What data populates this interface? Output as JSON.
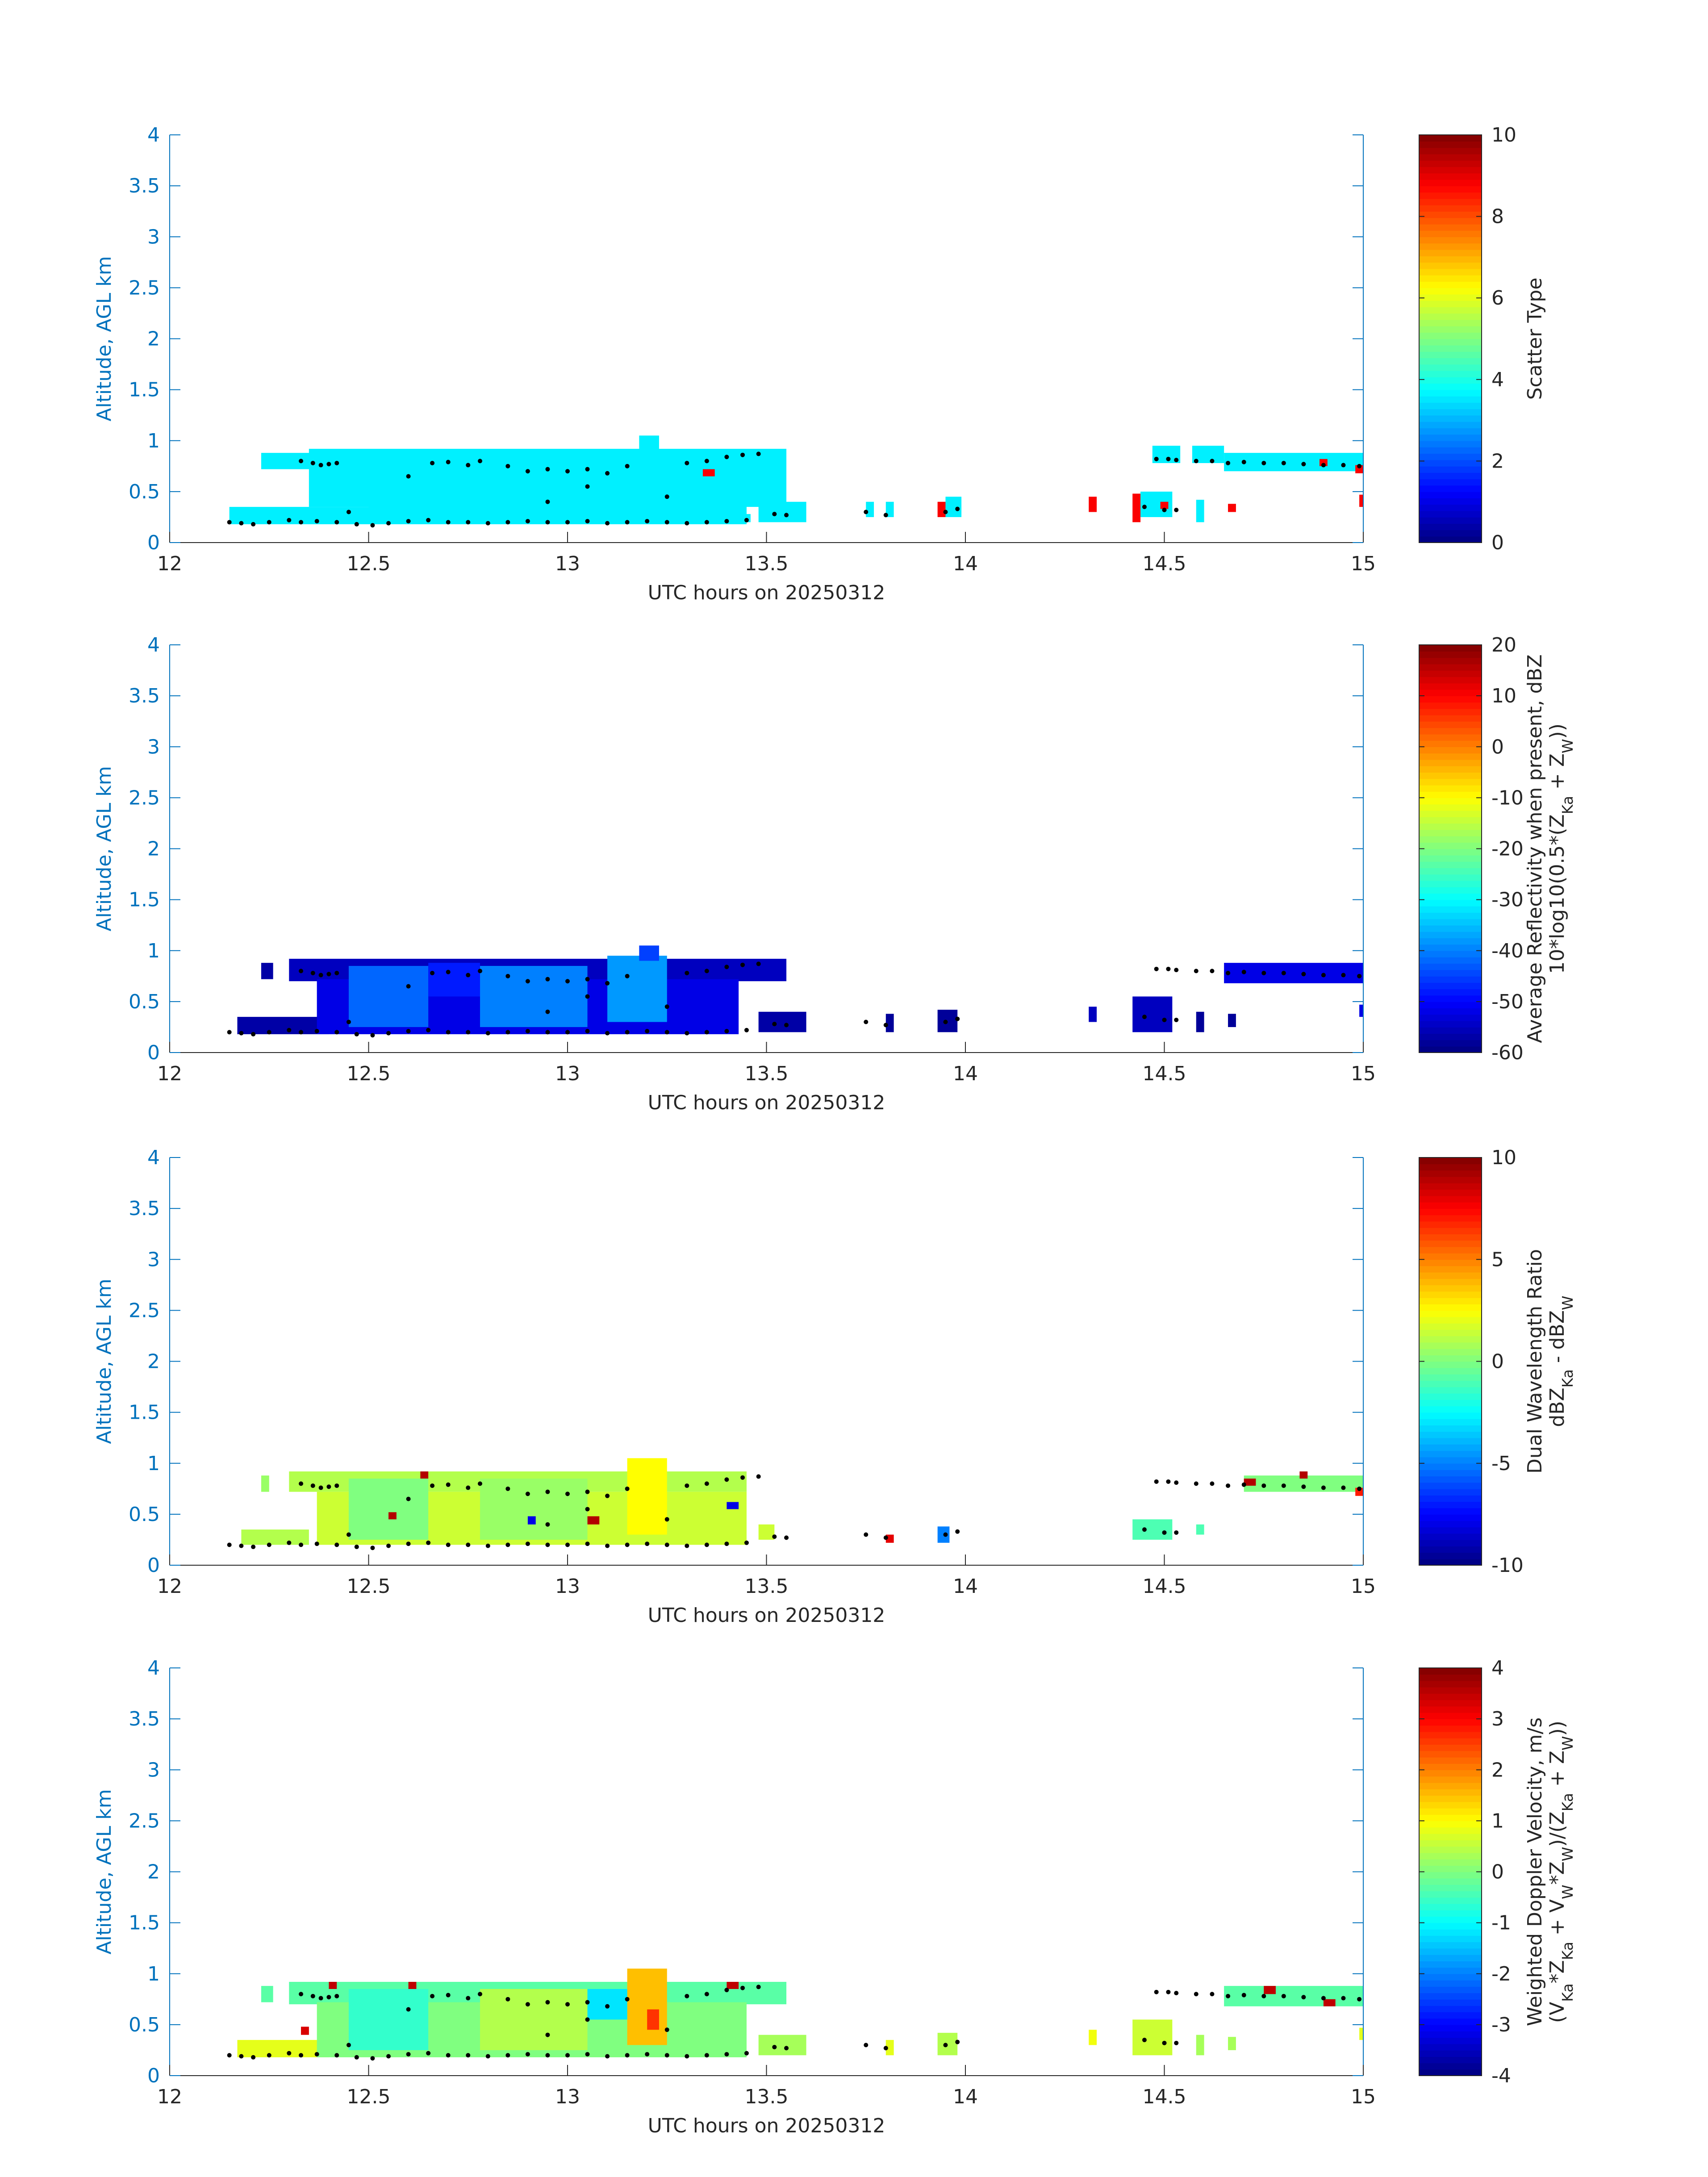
{
  "figure": {
    "axis_color": "#0072bd",
    "text_color": "#262626",
    "layer_color": "#000000"
  },
  "chart_data": [
    {
      "type": "heatmap",
      "title": "",
      "xlabel": "UTC hours on 20250312",
      "ylabel": "Altitude, AGL km",
      "xlim": [
        12,
        15
      ],
      "ylim": [
        0,
        4
      ],
      "xticks": [
        "12",
        "12.5",
        "13",
        "13.5",
        "14",
        "14.5",
        "15"
      ],
      "yticks": [
        "0",
        "0.5",
        "1",
        "1.5",
        "2",
        "2.5",
        "3",
        "3.5",
        "4"
      ],
      "colorbar": {
        "label_lines": [
          "Scatter Type"
        ],
        "range": [
          0,
          10
        ],
        "ticks": [
          "0",
          "2",
          "4",
          "6",
          "8",
          "10"
        ],
        "colormap": "jet"
      },
      "cells": [
        {
          "x0": 12.15,
          "x1": 12.53,
          "y0": 0.18,
          "y1": 0.35,
          "value": 3.6
        },
        {
          "x0": 12.23,
          "x1": 12.42,
          "y0": 0.72,
          "y1": 0.88,
          "value": 3.6
        },
        {
          "x0": 12.35,
          "x1": 13.55,
          "y0": 0.35,
          "y1": 0.92,
          "value": 3.6
        },
        {
          "x0": 12.5,
          "x1": 13.45,
          "y0": 0.18,
          "y1": 0.4,
          "value": 3.6
        },
        {
          "x0": 13.18,
          "x1": 13.23,
          "y0": 0.9,
          "y1": 1.05,
          "value": 3.6
        },
        {
          "x0": 13.38,
          "x1": 13.46,
          "y0": 0.2,
          "y1": 0.28,
          "value": 3.6
        },
        {
          "x0": 13.48,
          "x1": 13.6,
          "y0": 0.2,
          "y1": 0.4,
          "value": 3.6
        },
        {
          "x0": 13.75,
          "x1": 13.77,
          "y0": 0.25,
          "y1": 0.4,
          "value": 3.6
        },
        {
          "x0": 13.8,
          "x1": 13.82,
          "y0": 0.25,
          "y1": 0.4,
          "value": 3.6
        },
        {
          "x0": 13.95,
          "x1": 13.99,
          "y0": 0.25,
          "y1": 0.45,
          "value": 3.6
        },
        {
          "x0": 14.47,
          "x1": 14.54,
          "y0": 0.78,
          "y1": 0.95,
          "value": 3.6
        },
        {
          "x0": 14.57,
          "x1": 14.65,
          "y0": 0.78,
          "y1": 0.95,
          "value": 3.6
        },
        {
          "x0": 14.65,
          "x1": 15.0,
          "y0": 0.7,
          "y1": 0.88,
          "value": 3.6
        },
        {
          "x0": 14.44,
          "x1": 14.52,
          "y0": 0.25,
          "y1": 0.5,
          "value": 3.6
        },
        {
          "x0": 14.58,
          "x1": 14.6,
          "y0": 0.2,
          "y1": 0.42,
          "value": 3.6
        },
        {
          "x0": 13.34,
          "x1": 13.37,
          "y0": 0.65,
          "y1": 0.72,
          "value": 8.8
        },
        {
          "x0": 13.93,
          "x1": 13.95,
          "y0": 0.25,
          "y1": 0.4,
          "value": 8.8
        },
        {
          "x0": 14.31,
          "x1": 14.33,
          "y0": 0.3,
          "y1": 0.45,
          "value": 8.8
        },
        {
          "x0": 14.42,
          "x1": 14.44,
          "y0": 0.2,
          "y1": 0.48,
          "value": 8.8
        },
        {
          "x0": 14.49,
          "x1": 14.51,
          "y0": 0.33,
          "y1": 0.4,
          "value": 8.8
        },
        {
          "x0": 14.66,
          "x1": 14.68,
          "y0": 0.3,
          "y1": 0.38,
          "value": 8.8
        },
        {
          "x0": 14.89,
          "x1": 14.91,
          "y0": 0.75,
          "y1": 0.82,
          "value": 8.8
        },
        {
          "x0": 14.98,
          "x1": 15.0,
          "y0": 0.68,
          "y1": 0.76,
          "value": 8.8
        },
        {
          "x0": 14.99,
          "x1": 15.0,
          "y0": 0.35,
          "y1": 0.47,
          "value": 8.8
        }
      ]
    },
    {
      "type": "heatmap",
      "title": "",
      "xlabel": "UTC hours on 20250312",
      "ylabel": "Altitude, AGL km",
      "xlim": [
        12,
        15
      ],
      "ylim": [
        0,
        4
      ],
      "xticks": [
        "12",
        "12.5",
        "13",
        "13.5",
        "14",
        "14.5",
        "15"
      ],
      "yticks": [
        "0",
        "0.5",
        "1",
        "1.5",
        "2",
        "2.5",
        "3",
        "3.5",
        "4"
      ],
      "colorbar": {
        "label_lines": [
          "Average Reflectivity when present, dBZ",
          "10*log10(0.5*(Z_Ka + Z_W))"
        ],
        "range": [
          -60,
          20
        ],
        "ticks": [
          "-60",
          "-50",
          "-40",
          "-30",
          "-20",
          "-10",
          "0",
          "10",
          "20"
        ],
        "colormap": "jet"
      },
      "cells": [
        {
          "x0": 12.17,
          "x1": 12.4,
          "y0": 0.18,
          "y1": 0.35,
          "value": -57
        },
        {
          "x0": 12.23,
          "x1": 12.26,
          "y0": 0.72,
          "y1": 0.88,
          "value": -57
        },
        {
          "x0": 12.3,
          "x1": 13.55,
          "y0": 0.7,
          "y1": 0.92,
          "value": -55
        },
        {
          "x0": 12.37,
          "x1": 13.43,
          "y0": 0.18,
          "y1": 0.72,
          "value": -52
        },
        {
          "x0": 12.45,
          "x1": 12.65,
          "y0": 0.25,
          "y1": 0.85,
          "value": -42
        },
        {
          "x0": 12.78,
          "x1": 13.05,
          "y0": 0.25,
          "y1": 0.85,
          "value": -40
        },
        {
          "x0": 13.1,
          "x1": 13.25,
          "y0": 0.3,
          "y1": 0.95,
          "value": -38
        },
        {
          "x0": 13.18,
          "x1": 13.23,
          "y0": 0.9,
          "y1": 1.05,
          "value": -45
        },
        {
          "x0": 12.65,
          "x1": 12.78,
          "y0": 0.55,
          "y1": 0.88,
          "value": -48
        },
        {
          "x0": 13.48,
          "x1": 13.6,
          "y0": 0.2,
          "y1": 0.4,
          "value": -57
        },
        {
          "x0": 13.8,
          "x1": 13.82,
          "y0": 0.2,
          "y1": 0.38,
          "value": -58
        },
        {
          "x0": 13.93,
          "x1": 13.98,
          "y0": 0.2,
          "y1": 0.42,
          "value": -58
        },
        {
          "x0": 14.31,
          "x1": 14.33,
          "y0": 0.3,
          "y1": 0.45,
          "value": -55
        },
        {
          "x0": 14.42,
          "x1": 14.52,
          "y0": 0.2,
          "y1": 0.55,
          "value": -55
        },
        {
          "x0": 14.58,
          "x1": 14.6,
          "y0": 0.2,
          "y1": 0.4,
          "value": -58
        },
        {
          "x0": 14.66,
          "x1": 14.68,
          "y0": 0.25,
          "y1": 0.38,
          "value": -58
        },
        {
          "x0": 14.65,
          "x1": 15.0,
          "y0": 0.68,
          "y1": 0.88,
          "value": -52
        },
        {
          "x0": 14.99,
          "x1": 15.0,
          "y0": 0.35,
          "y1": 0.47,
          "value": -52
        }
      ]
    },
    {
      "type": "heatmap",
      "title": "",
      "xlabel": "UTC hours on 20250312",
      "ylabel": "Altitude, AGL km",
      "xlim": [
        12,
        15
      ],
      "ylim": [
        0,
        4
      ],
      "xticks": [
        "12",
        "12.5",
        "13",
        "13.5",
        "14",
        "14.5",
        "15"
      ],
      "yticks": [
        "0",
        "0.5",
        "1",
        "1.5",
        "2",
        "2.5",
        "3",
        "3.5",
        "4"
      ],
      "colorbar": {
        "label_lines": [
          "Dual Wavelength Ratio",
          "dBZ_Ka - dBZ_W"
        ],
        "range": [
          -10,
          10
        ],
        "ticks": [
          "-10",
          "-5",
          "0",
          "5",
          "10"
        ],
        "colormap": "jet"
      },
      "cells": [
        {
          "x0": 12.23,
          "x1": 12.25,
          "y0": 0.72,
          "y1": 0.88,
          "value": 0.5
        },
        {
          "x0": 12.3,
          "x1": 13.45,
          "y0": 0.72,
          "y1": 0.92,
          "value": 1
        },
        {
          "x0": 12.37,
          "x1": 13.45,
          "y0": 0.2,
          "y1": 0.72,
          "value": 1.5
        },
        {
          "x0": 12.45,
          "x1": 12.65,
          "y0": 0.25,
          "y1": 0.85,
          "value": 0
        },
        {
          "x0": 12.78,
          "x1": 13.05,
          "y0": 0.25,
          "y1": 0.85,
          "value": 0.5
        },
        {
          "x0": 13.15,
          "x1": 13.25,
          "y0": 0.3,
          "y1": 1.05,
          "value": 2.5
        },
        {
          "x0": 12.18,
          "x1": 12.35,
          "y0": 0.2,
          "y1": 0.35,
          "value": 1
        },
        {
          "x0": 13.48,
          "x1": 13.52,
          "y0": 0.25,
          "y1": 0.4,
          "value": 1.5
        },
        {
          "x0": 13.8,
          "x1": 13.82,
          "y0": 0.22,
          "y1": 0.3,
          "value": 8
        },
        {
          "x0": 13.93,
          "x1": 13.96,
          "y0": 0.22,
          "y1": 0.38,
          "value": -5
        },
        {
          "x0": 14.42,
          "x1": 14.52,
          "y0": 0.25,
          "y1": 0.45,
          "value": -1
        },
        {
          "x0": 14.58,
          "x1": 14.6,
          "y0": 0.3,
          "y1": 0.4,
          "value": -1
        },
        {
          "x0": 14.7,
          "x1": 15.0,
          "y0": 0.72,
          "y1": 0.88,
          "value": 0
        },
        {
          "x0": 14.7,
          "x1": 14.73,
          "y0": 0.78,
          "y1": 0.85,
          "value": 9
        },
        {
          "x0": 14.84,
          "x1": 14.86,
          "y0": 0.85,
          "y1": 0.92,
          "value": 9
        },
        {
          "x0": 14.98,
          "x1": 15.0,
          "y0": 0.68,
          "y1": 0.76,
          "value": 7
        },
        {
          "x0": 12.55,
          "x1": 12.57,
          "y0": 0.45,
          "y1": 0.52,
          "value": 9
        },
        {
          "x0": 12.63,
          "x1": 12.65,
          "y0": 0.85,
          "y1": 0.92,
          "value": 9
        },
        {
          "x0": 13.4,
          "x1": 13.43,
          "y0": 0.55,
          "y1": 0.62,
          "value": -8
        },
        {
          "x0": 13.05,
          "x1": 13.08,
          "y0": 0.4,
          "y1": 0.48,
          "value": 9
        },
        {
          "x0": 12.9,
          "x1": 12.92,
          "y0": 0.4,
          "y1": 0.48,
          "value": -8
        }
      ]
    },
    {
      "type": "heatmap",
      "title": "",
      "xlabel": "UTC hours on 20250312",
      "ylabel": "Altitude, AGL km",
      "xlim": [
        12,
        15
      ],
      "ylim": [
        0,
        4
      ],
      "xticks": [
        "12",
        "12.5",
        "13",
        "13.5",
        "14",
        "14.5",
        "15"
      ],
      "yticks": [
        "0",
        "0.5",
        "1",
        "1.5",
        "2",
        "2.5",
        "3",
        "3.5",
        "4"
      ],
      "colorbar": {
        "label_lines": [
          "Weighted Doppler Velocity, m/s",
          "(V_Ka*Z_Ka + V_W*Z_W)/(Z_Ka + Z_W))"
        ],
        "range": [
          -4,
          4
        ],
        "ticks": [
          "-4",
          "-3",
          "-2",
          "-1",
          "0",
          "1",
          "2",
          "3",
          "4"
        ],
        "colormap": "jet"
      },
      "cells": [
        {
          "x0": 12.17,
          "x1": 12.4,
          "y0": 0.18,
          "y1": 0.35,
          "value": 0.8
        },
        {
          "x0": 12.23,
          "x1": 12.26,
          "y0": 0.72,
          "y1": 0.88,
          "value": -0.3
        },
        {
          "x0": 12.3,
          "x1": 13.55,
          "y0": 0.7,
          "y1": 0.92,
          "value": -0.3
        },
        {
          "x0": 12.37,
          "x1": 13.45,
          "y0": 0.18,
          "y1": 0.72,
          "value": 0
        },
        {
          "x0": 12.45,
          "x1": 12.65,
          "y0": 0.25,
          "y1": 0.85,
          "value": -0.6
        },
        {
          "x0": 12.78,
          "x1": 13.05,
          "y0": 0.25,
          "y1": 0.85,
          "value": 0.4
        },
        {
          "x0": 13.15,
          "x1": 13.25,
          "y0": 0.3,
          "y1": 1.05,
          "value": 1.5
        },
        {
          "x0": 13.2,
          "x1": 13.23,
          "y0": 0.45,
          "y1": 0.65,
          "value": 2.6
        },
        {
          "x0": 13.05,
          "x1": 13.15,
          "y0": 0.55,
          "y1": 0.85,
          "value": -1.2
        },
        {
          "x0": 13.48,
          "x1": 13.6,
          "y0": 0.2,
          "y1": 0.4,
          "value": 0.3
        },
        {
          "x0": 13.8,
          "x1": 13.82,
          "y0": 0.2,
          "y1": 0.35,
          "value": 0.8
        },
        {
          "x0": 13.93,
          "x1": 13.98,
          "y0": 0.2,
          "y1": 0.42,
          "value": 0.4
        },
        {
          "x0": 14.31,
          "x1": 14.33,
          "y0": 0.3,
          "y1": 0.45,
          "value": 0.9
        },
        {
          "x0": 14.42,
          "x1": 14.52,
          "y0": 0.2,
          "y1": 0.55,
          "value": 0.6
        },
        {
          "x0": 14.58,
          "x1": 14.6,
          "y0": 0.2,
          "y1": 0.4,
          "value": 0.3
        },
        {
          "x0": 14.66,
          "x1": 14.68,
          "y0": 0.25,
          "y1": 0.38,
          "value": 0.3
        },
        {
          "x0": 14.65,
          "x1": 15.0,
          "y0": 0.68,
          "y1": 0.88,
          "value": -0.3
        },
        {
          "x0": 14.99,
          "x1": 15.0,
          "y0": 0.35,
          "y1": 0.47,
          "value": 0.8
        },
        {
          "x0": 12.4,
          "x1": 12.42,
          "y0": 0.85,
          "y1": 0.92,
          "value": 3.5
        },
        {
          "x0": 12.6,
          "x1": 12.62,
          "y0": 0.85,
          "y1": 0.92,
          "value": 3.5
        },
        {
          "x0": 13.4,
          "x1": 13.43,
          "y0": 0.85,
          "y1": 0.92,
          "value": 3.5
        },
        {
          "x0": 12.33,
          "x1": 12.35,
          "y0": 0.4,
          "y1": 0.48,
          "value": 3.3
        },
        {
          "x0": 14.75,
          "x1": 14.78,
          "y0": 0.8,
          "y1": 0.88,
          "value": 3.5
        },
        {
          "x0": 14.9,
          "x1": 14.93,
          "y0": 0.68,
          "y1": 0.75,
          "value": 3.5
        }
      ]
    }
  ],
  "cloud_layer_dots": [
    [
      12.15,
      0.2
    ],
    [
      12.18,
      0.19
    ],
    [
      12.21,
      0.18
    ],
    [
      12.25,
      0.2
    ],
    [
      12.3,
      0.22
    ],
    [
      12.33,
      0.2
    ],
    [
      12.37,
      0.21
    ],
    [
      12.42,
      0.2
    ],
    [
      12.47,
      0.18
    ],
    [
      12.51,
      0.17
    ],
    [
      12.55,
      0.19
    ],
    [
      12.6,
      0.21
    ],
    [
      12.65,
      0.22
    ],
    [
      12.7,
      0.2
    ],
    [
      12.75,
      0.2
    ],
    [
      12.8,
      0.19
    ],
    [
      12.85,
      0.2
    ],
    [
      12.9,
      0.21
    ],
    [
      12.95,
      0.2
    ],
    [
      13.0,
      0.2
    ],
    [
      13.05,
      0.21
    ],
    [
      13.1,
      0.19
    ],
    [
      13.15,
      0.2
    ],
    [
      13.2,
      0.21
    ],
    [
      13.25,
      0.2
    ],
    [
      13.3,
      0.19
    ],
    [
      13.35,
      0.2
    ],
    [
      13.4,
      0.21
    ],
    [
      13.45,
      0.22
    ],
    [
      12.33,
      0.8
    ],
    [
      12.36,
      0.78
    ],
    [
      12.38,
      0.76
    ],
    [
      12.4,
      0.77
    ],
    [
      12.42,
      0.78
    ],
    [
      12.66,
      0.78
    ],
    [
      12.7,
      0.79
    ],
    [
      12.75,
      0.76
    ],
    [
      12.78,
      0.8
    ],
    [
      12.85,
      0.75
    ],
    [
      12.9,
      0.7
    ],
    [
      12.95,
      0.72
    ],
    [
      13.0,
      0.7
    ],
    [
      13.05,
      0.72
    ],
    [
      13.1,
      0.68
    ],
    [
      13.15,
      0.75
    ],
    [
      13.3,
      0.78
    ],
    [
      13.35,
      0.8
    ],
    [
      13.4,
      0.84
    ],
    [
      13.44,
      0.86
    ],
    [
      13.48,
      0.87
    ],
    [
      12.45,
      0.3
    ],
    [
      12.6,
      0.65
    ],
    [
      12.95,
      0.4
    ],
    [
      13.05,
      0.55
    ],
    [
      13.25,
      0.45
    ],
    [
      13.52,
      0.28
    ],
    [
      13.55,
      0.27
    ],
    [
      13.75,
      0.3
    ],
    [
      13.8,
      0.27
    ],
    [
      13.95,
      0.3
    ],
    [
      13.98,
      0.33
    ],
    [
      14.48,
      0.82
    ],
    [
      14.51,
      0.82
    ],
    [
      14.53,
      0.81
    ],
    [
      14.58,
      0.8
    ],
    [
      14.62,
      0.8
    ],
    [
      14.66,
      0.78
    ],
    [
      14.7,
      0.79
    ],
    [
      14.75,
      0.78
    ],
    [
      14.8,
      0.78
    ],
    [
      14.85,
      0.77
    ],
    [
      14.9,
      0.76
    ],
    [
      14.95,
      0.76
    ],
    [
      14.99,
      0.75
    ],
    [
      14.45,
      0.35
    ],
    [
      14.5,
      0.32
    ],
    [
      14.53,
      0.32
    ]
  ]
}
